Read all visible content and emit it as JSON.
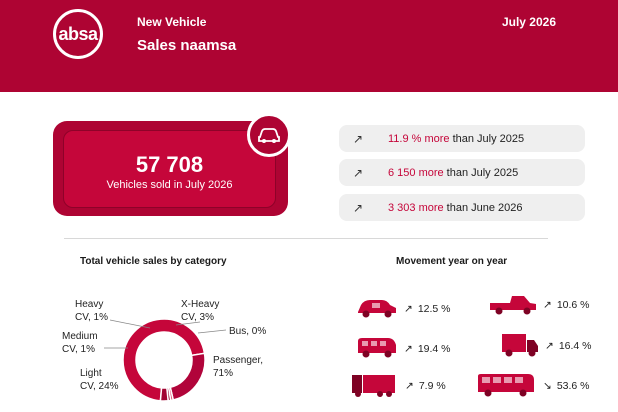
{
  "header": {
    "brand": "absa",
    "kicker": "New Vehicle",
    "title": "Sales naamsa",
    "date": "July 2026"
  },
  "hero": {
    "value": "57 708",
    "subtitle": "Vehicles sold in July 2026",
    "icon": "car-icon"
  },
  "stats": [
    {
      "highlight": "11.9 % more",
      "rest": "than July 2025",
      "icon": "trend-up-icon"
    },
    {
      "highlight": "6 150 more",
      "rest": "than July 2025",
      "icon": "trend-up-icon"
    },
    {
      "highlight": "3 303 more",
      "rest": "than June 2026",
      "icon": "trend-up-icon"
    }
  ],
  "category": {
    "title": "Total vehicle sales by category",
    "labels": {
      "heavy": [
        "Heavy",
        "CV, 1%"
      ],
      "xheavy": [
        "X-Heavy",
        "CV, 3%"
      ],
      "bus": [
        "Bus, 0%"
      ],
      "medium": [
        "Medium",
        "CV, 1%"
      ],
      "light": [
        "Light",
        "CV, 24%"
      ],
      "passenger": [
        "Passenger,",
        "71%"
      ]
    }
  },
  "chart_data": {
    "type": "pie",
    "categories": [
      "Passenger",
      "Light CV",
      "Medium CV",
      "Heavy CV",
      "X-Heavy CV",
      "Bus"
    ],
    "values": [
      71,
      24,
      1,
      1,
      3,
      0
    ]
  },
  "movement": {
    "title": "Movement year on year",
    "items": [
      {
        "vehicle": "car",
        "trend": "up",
        "value": "12.5 %"
      },
      {
        "vehicle": "bakkie",
        "trend": "up",
        "value": "10.6 %"
      },
      {
        "vehicle": "minibus",
        "trend": "up",
        "value": "19.4 %"
      },
      {
        "vehicle": "light-truck",
        "trend": "up",
        "value": "16.4 %"
      },
      {
        "vehicle": "heavy-truck",
        "trend": "up",
        "value": "7.9 %"
      },
      {
        "vehicle": "bus",
        "trend": "down",
        "value": "53.6 %"
      }
    ]
  },
  "colors": {
    "brand": "#ae0433",
    "accent": "#c5063a",
    "dark": "#7e0224"
  }
}
